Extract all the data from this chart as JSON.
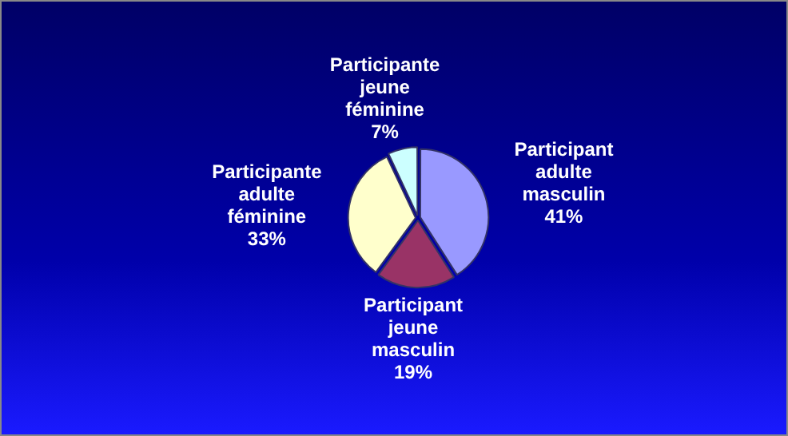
{
  "chart_data": {
    "type": "pie",
    "categories": [
      "Participant adulte masculin",
      "Participant jeune masculin",
      "Participante adulte féminine",
      "Participante jeune féminine"
    ],
    "values": [
      41,
      19,
      33,
      7
    ],
    "colors": [
      "#9999ff",
      "#993366",
      "#ffffcc",
      "#ccffff"
    ],
    "value_labels": [
      "41%",
      "19%",
      "33%",
      "7%"
    ],
    "legend": false
  }
}
